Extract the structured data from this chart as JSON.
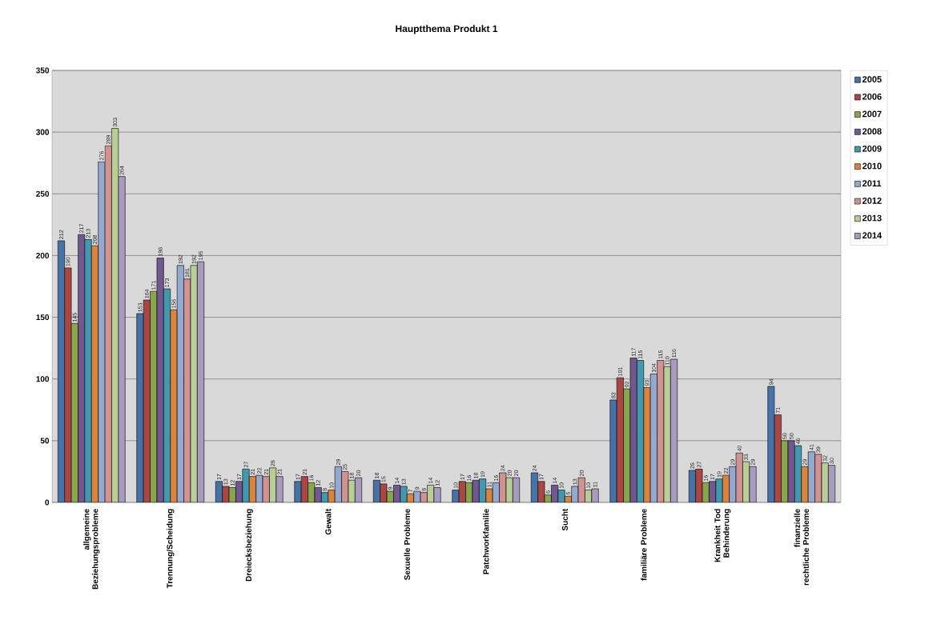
{
  "chart_data": {
    "type": "bar",
    "title": "Hauptthema Produkt 1",
    "categories": [
      "allgemeine Beziehungsprobleme",
      "Trennung/Scheidung",
      "Dreiecksbeziehung",
      "Gewalt",
      "Sexuelle Probleme",
      "Patchworkfamilie",
      "Sucht",
      "familiäre Probleme",
      "Krankheit Tod Behinderung",
      "finanzielle rechtliche Probleme"
    ],
    "series": [
      {
        "name": "2005",
        "color": "#4572a7",
        "values": [
          212,
          153,
          17,
          17,
          18,
          10,
          24,
          83,
          26,
          94
        ]
      },
      {
        "name": "2006",
        "color": "#aa4643",
        "values": [
          190,
          164,
          13,
          21,
          15,
          17,
          17,
          101,
          27,
          71
        ]
      },
      {
        "name": "2007",
        "color": "#89a54e",
        "values": [
          145,
          171,
          12,
          16,
          9,
          16,
          6,
          92,
          16,
          50
        ]
      },
      {
        "name": "2008",
        "color": "#71588f",
        "values": [
          217,
          198,
          17,
          12,
          14,
          18,
          14,
          117,
          17,
          50
        ]
      },
      {
        "name": "2009",
        "color": "#4198af",
        "values": [
          213,
          173,
          27,
          8,
          13,
          19,
          10,
          115,
          19,
          46
        ]
      },
      {
        "name": "2010",
        "color": "#db843d",
        "values": [
          208,
          156,
          21,
          10,
          7,
          11,
          5,
          93,
          22,
          29
        ]
      },
      {
        "name": "2011",
        "color": "#93a9cf",
        "values": [
          276,
          192,
          22,
          29,
          9,
          16,
          13,
          104,
          29,
          41
        ]
      },
      {
        "name": "2012",
        "color": "#d19392",
        "values": [
          289,
          181,
          21,
          25,
          8,
          24,
          20,
          115,
          40,
          39
        ]
      },
      {
        "name": "2013",
        "color": "#b9cd96",
        "values": [
          303,
          192,
          28,
          18,
          14,
          20,
          10,
          110,
          33,
          32
        ]
      },
      {
        "name": "2014",
        "color": "#a99bbd",
        "values": [
          264,
          195,
          21,
          20,
          12,
          20,
          11,
          116,
          29,
          30
        ]
      }
    ],
    "ylim": [
      0,
      350
    ],
    "yticks": [
      0,
      50,
      100,
      150,
      200,
      250,
      300,
      350
    ],
    "grid": "y",
    "legend": "right",
    "data_labels": true
  }
}
